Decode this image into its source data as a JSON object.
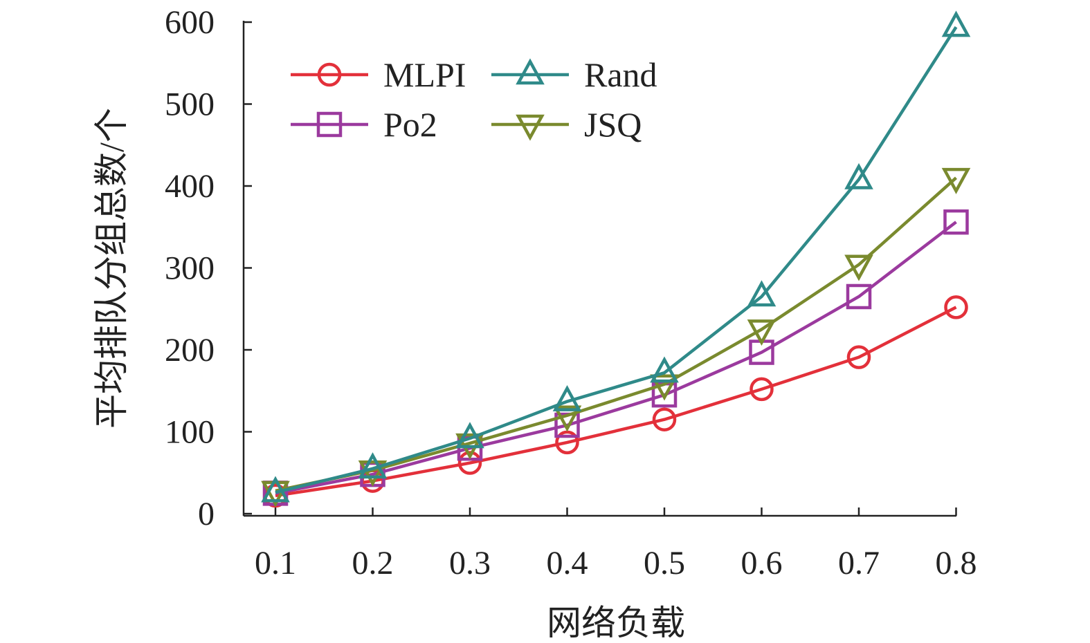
{
  "chart_data": {
    "type": "line",
    "title": "",
    "xlabel": "网络负载",
    "ylabel": "平均排队分组总数/个",
    "x": [
      0.1,
      0.2,
      0.3,
      0.4,
      0.5,
      0.6,
      0.7,
      0.8
    ],
    "x_tick_labels": [
      "0.1",
      "0.2",
      "0.3",
      "0.4",
      "0.5",
      "0.6",
      "0.7",
      "0.8"
    ],
    "ylim": [
      0,
      600
    ],
    "y_ticks": [
      0,
      100,
      200,
      300,
      400,
      500,
      600
    ],
    "y_tick_labels": [
      "0",
      "100",
      "200",
      "300",
      "400",
      "500",
      "600"
    ],
    "grid": false,
    "legend_position": "top-left",
    "series": [
      {
        "name": "MLPI",
        "marker": "circle",
        "color": "#e3303a",
        "values": [
          22,
          40,
          62,
          87,
          115,
          152,
          191,
          252
        ]
      },
      {
        "name": "Po2",
        "marker": "square",
        "color": "#9b3a9e",
        "values": [
          25,
          48,
          80,
          108,
          145,
          197,
          265,
          356
        ]
      },
      {
        "name": "Rand",
        "marker": "triangle-up",
        "color": "#2f8a89",
        "values": [
          26,
          55,
          92,
          137,
          172,
          265,
          408,
          594
        ]
      },
      {
        "name": "JSQ",
        "marker": "triangle-down",
        "color": "#7a8a2e",
        "values": [
          28,
          53,
          86,
          120,
          158,
          225,
          304,
          410
        ]
      }
    ]
  }
}
